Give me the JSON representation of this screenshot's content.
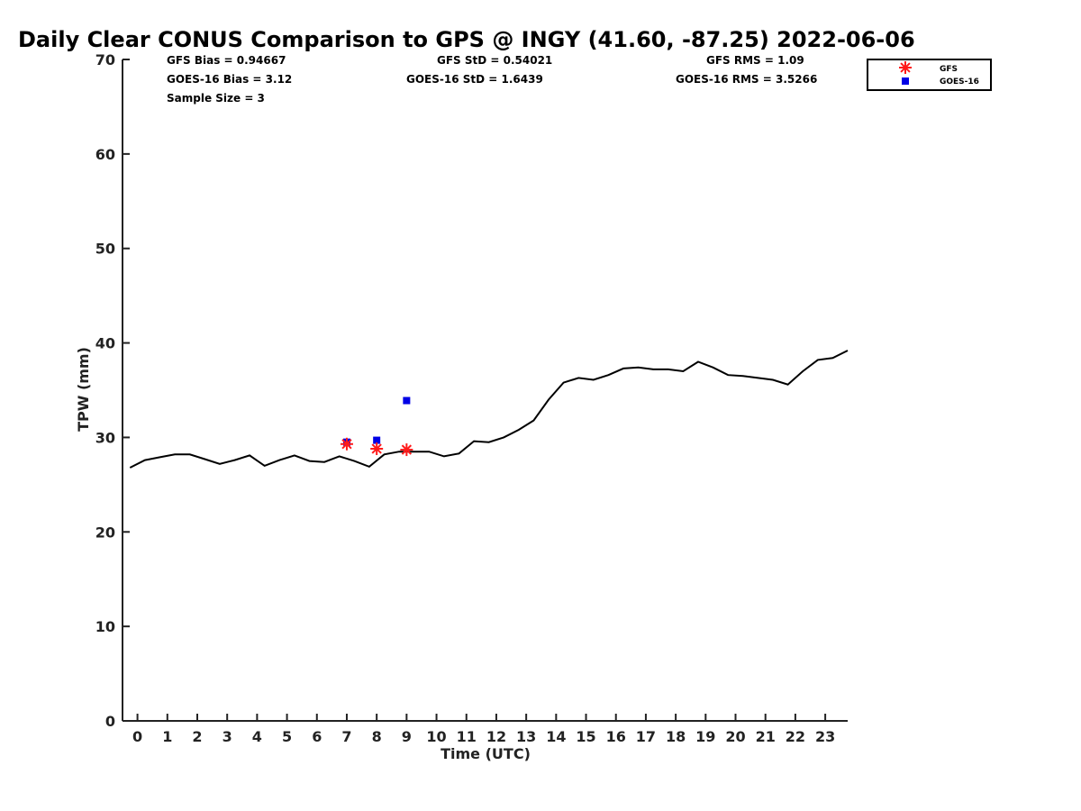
{
  "chart_data": {
    "type": "line",
    "title": "Daily Clear CONUS Comparison to GPS @ INGY (41.60, -87.25) 2022-06-06",
    "xlabel": "Time (UTC)",
    "ylabel": "TPW (mm)",
    "xlim": [
      -0.5,
      23.75
    ],
    "ylim": [
      0,
      70
    ],
    "xticks": [
      0,
      1,
      2,
      3,
      4,
      5,
      6,
      7,
      8,
      9,
      10,
      11,
      12,
      13,
      14,
      15,
      16,
      17,
      18,
      19,
      20,
      21,
      22,
      23
    ],
    "yticks": [
      0,
      10,
      20,
      30,
      40,
      50,
      60,
      70
    ],
    "grid": false,
    "legend_position": "top-right",
    "stats": {
      "gfs_bias": "GFS Bias = 0.94667",
      "gfs_std": "GFS StD = 0.54021",
      "gfs_rms": "GFS RMS = 1.09",
      "goes_bias": "GOES-16 Bias = 3.12",
      "goes_std": "GOES-16 StD = 1.6439",
      "goes_rms": "GOES-16 RMS = 3.5266",
      "sample_size": "Sample Size = 3"
    },
    "series": [
      {
        "type": "line",
        "color": "#000000",
        "x": [
          -0.25,
          0.25,
          0.75,
          1.25,
          1.75,
          2.25,
          2.75,
          3.25,
          3.75,
          4.25,
          4.75,
          5.25,
          5.75,
          6.25,
          6.75,
          7.25,
          7.75,
          8.25,
          8.75,
          9.25,
          9.75,
          10.25,
          10.75,
          11.25,
          11.75,
          12.25,
          12.75,
          13.25,
          13.75,
          14.25,
          14.75,
          15.25,
          15.75,
          16.25,
          16.75,
          17.25,
          17.75,
          18.25,
          18.75,
          19.25,
          19.75,
          20.25,
          20.75,
          21.25,
          21.75,
          22.25,
          22.75,
          23.25,
          23.75
        ],
        "y": [
          26.8,
          27.6,
          27.9,
          28.2,
          28.2,
          27.7,
          27.2,
          27.6,
          28.1,
          27.0,
          27.6,
          28.1,
          27.5,
          27.4,
          28.0,
          27.5,
          26.9,
          28.2,
          28.5,
          28.5,
          28.5,
          28.0,
          28.3,
          29.6,
          29.5,
          30.0,
          30.8,
          31.8,
          34.0,
          35.8,
          36.3,
          36.1,
          36.6,
          37.3,
          37.4,
          37.2,
          37.2,
          37.0,
          38.0,
          37.4,
          36.6,
          36.5,
          36.3,
          36.1,
          35.6,
          37.0,
          38.2,
          38.4,
          39.2
        ]
      },
      {
        "name": "GFS",
        "type": "scatter",
        "marker": "asterisk",
        "color": "#ff1a1a",
        "x": [
          7.0,
          8.0,
          9.0
        ],
        "y": [
          29.3,
          28.8,
          28.7
        ]
      },
      {
        "name": "GOES-16",
        "type": "scatter",
        "marker": "square",
        "color": "#0000e6",
        "x": [
          7.0,
          8.0,
          9.0
        ],
        "y": [
          29.5,
          29.7,
          33.9
        ]
      }
    ]
  }
}
